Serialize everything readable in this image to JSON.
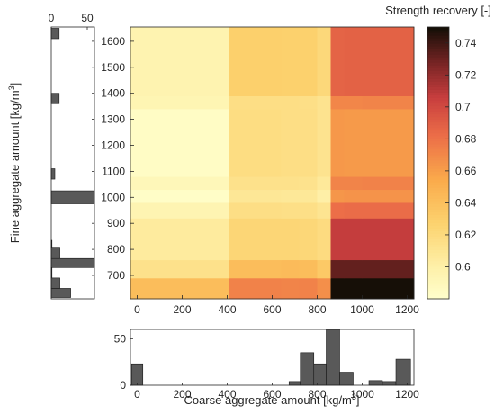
{
  "figure": {
    "fine_label": "Fine aggregate amount [kg/m",
    "fine_label_sup": "3",
    "fine_label_end": "]",
    "coarse_label": "Coarse aggregate amount [kg/m",
    "coarse_label_sup": "3",
    "coarse_label_end": "]",
    "colorbar_label": "Strength recovery [-]"
  },
  "chart_data": [
    {
      "type": "heatmap",
      "colormap": "afmhot-reversed",
      "colorscale_range": [
        0.58,
        0.75
      ],
      "xlim": [
        -30,
        1230
      ],
      "ylim": [
        610,
        1655
      ],
      "xticks": [
        0,
        200,
        400,
        600,
        800,
        1000,
        1200
      ],
      "yticks": [
        700,
        800,
        900,
        1000,
        1100,
        1200,
        1300,
        1400,
        1500,
        1600
      ],
      "x_bins": [
        -30,
        410,
        640,
        720,
        800,
        860,
        920,
        1000,
        1230
      ],
      "y_bins": [
        610,
        690,
        760,
        920,
        980,
        1030,
        1080,
        1340,
        1390,
        1655
      ],
      "z": [
        [
          0.642,
          0.673,
          0.672,
          0.673,
          0.667,
          0.749,
          0.749,
          0.749
        ],
        [
          0.614,
          0.642,
          0.643,
          0.642,
          0.634,
          0.732,
          0.732,
          0.732
        ],
        [
          0.605,
          0.624,
          0.624,
          0.623,
          0.619,
          0.707,
          0.707,
          0.707
        ],
        [
          0.595,
          0.617,
          0.616,
          0.616,
          0.611,
          0.682,
          0.683,
          0.683
        ],
        [
          0.583,
          0.609,
          0.608,
          0.608,
          0.601,
          0.664,
          0.665,
          0.665
        ],
        [
          0.591,
          0.614,
          0.614,
          0.613,
          0.607,
          0.672,
          0.672,
          0.673
        ],
        [
          0.584,
          0.618,
          0.617,
          0.617,
          0.612,
          0.663,
          0.662,
          0.662
        ],
        [
          0.594,
          0.617,
          0.617,
          0.616,
          0.612,
          0.671,
          0.671,
          0.672
        ],
        [
          0.596,
          0.629,
          0.628,
          0.628,
          0.622,
          0.687,
          0.688,
          0.688
        ]
      ]
    },
    {
      "type": "bar",
      "orientation": "horizontal",
      "axis": "fine aggregate amount",
      "xlim": [
        0,
        60
      ],
      "xticks": [
        0,
        50
      ],
      "bins": [
        {
          "from": 615,
          "to": 650,
          "value": 27
        },
        {
          "from": 650,
          "to": 690,
          "value": 12
        },
        {
          "from": 690,
          "to": 730,
          "value": 1
        },
        {
          "from": 730,
          "to": 765,
          "value": 60
        },
        {
          "from": 765,
          "to": 805,
          "value": 12
        },
        {
          "from": 805,
          "to": 835,
          "value": 1
        },
        {
          "from": 975,
          "to": 1025,
          "value": 60
        },
        {
          "from": 1070,
          "to": 1110,
          "value": 5
        },
        {
          "from": 1360,
          "to": 1400,
          "value": 11
        },
        {
          "from": 1610,
          "to": 1650,
          "value": 11
        }
      ],
      "color": "#595959"
    },
    {
      "type": "bar",
      "axis": "coarse aggregate amount",
      "ylim": [
        0,
        60
      ],
      "yticks": [
        0,
        50
      ],
      "bins": [
        {
          "from": -25,
          "to": 25,
          "value": 23
        },
        {
          "from": 675,
          "to": 725,
          "value": 4
        },
        {
          "from": 725,
          "to": 785,
          "value": 35
        },
        {
          "from": 785,
          "to": 840,
          "value": 23
        },
        {
          "from": 840,
          "to": 900,
          "value": 60
        },
        {
          "from": 900,
          "to": 960,
          "value": 14
        },
        {
          "from": 1030,
          "to": 1090,
          "value": 5
        },
        {
          "from": 1090,
          "to": 1150,
          "value": 4
        },
        {
          "from": 1150,
          "to": 1215,
          "value": 28
        }
      ],
      "color": "#595959"
    },
    {
      "type": "colorbar",
      "range": [
        0.58,
        0.75
      ],
      "ticks": [
        0.6,
        0.62,
        0.64,
        0.66,
        0.68,
        0.7,
        0.72,
        0.74
      ]
    }
  ]
}
